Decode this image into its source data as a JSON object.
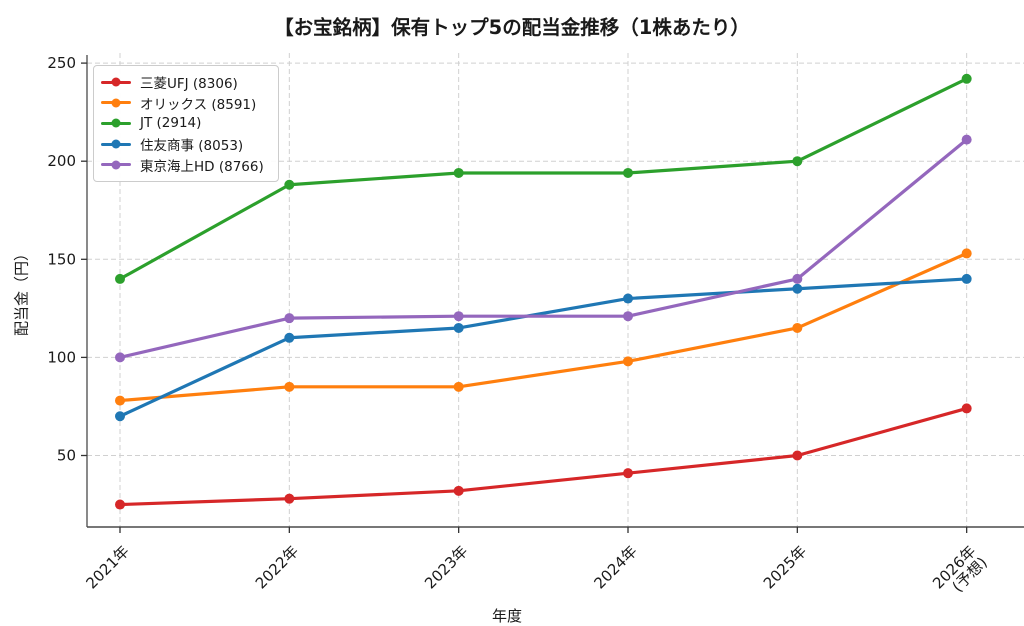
{
  "chart_data": {
    "type": "line",
    "title": "【お宝銘柄】保有トップ5の配当金推移（1株あたり）",
    "xlabel": "年度",
    "ylabel": "配当金（円）",
    "categories": [
      "2021年",
      "2022年",
      "2023年",
      "2024年",
      "2025年",
      "2026年\n(予想)"
    ],
    "series": [
      {
        "name": "三菱UFJ (8306)",
        "color": "#d62728",
        "values": [
          25,
          28,
          32,
          41,
          50,
          74
        ]
      },
      {
        "name": "オリックス (8591)",
        "color": "#ff7f0e",
        "values": [
          78,
          85,
          85,
          98,
          115,
          153
        ]
      },
      {
        "name": "JT (2914)",
        "color": "#2ca02c",
        "values": [
          140,
          188,
          194,
          194,
          200,
          242
        ]
      },
      {
        "name": "住友商事 (8053)",
        "color": "#1f77b4",
        "values": [
          70,
          110,
          115,
          130,
          135,
          140
        ]
      },
      {
        "name": "東京海上HD (8766)",
        "color": "#9467bd",
        "values": [
          100,
          120,
          121,
          121,
          140,
          211
        ]
      }
    ],
    "yticks": [
      50,
      100,
      150,
      200,
      250
    ],
    "ylim": [
      14,
      253
    ],
    "grid": true,
    "grid_style": "dashed",
    "legend_position": "upper left",
    "colors": {
      "grid": "#d0d0d0",
      "spine": "#4a4a4a",
      "tick_label": "#1a1a1a",
      "legend_border": "#cccccc"
    }
  }
}
